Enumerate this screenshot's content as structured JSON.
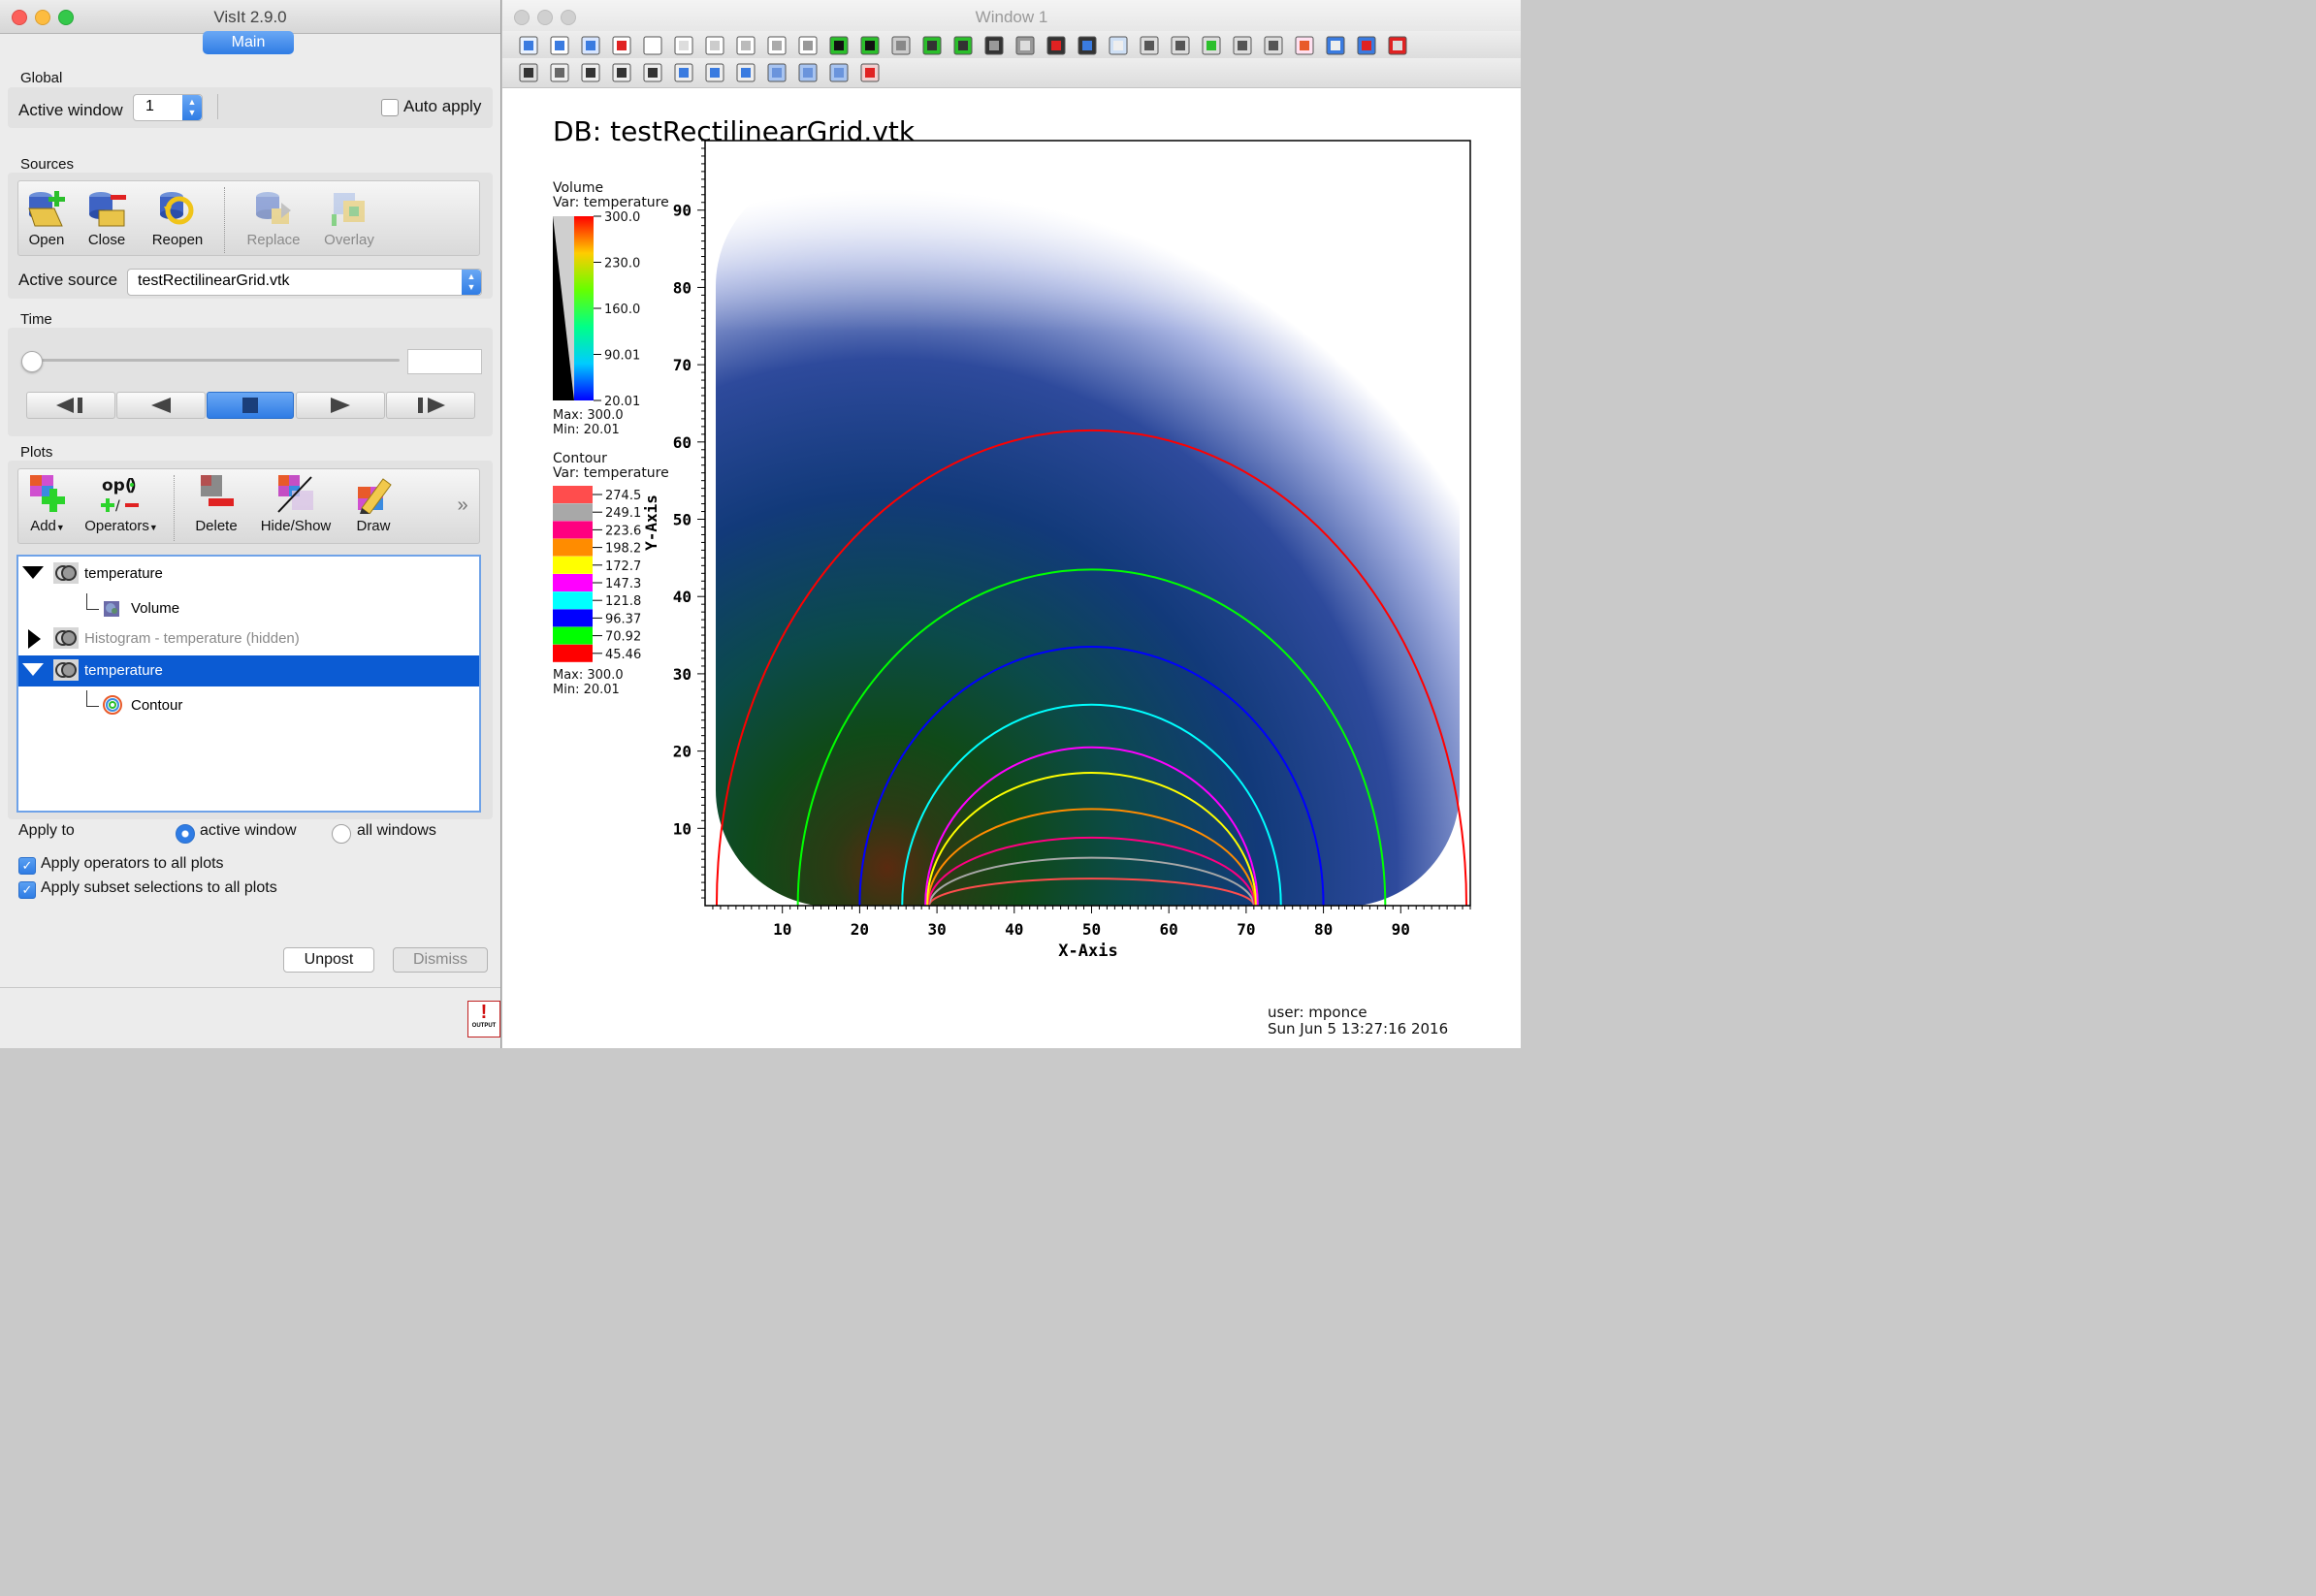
{
  "left_window": {
    "title": "VisIt 2.9.0",
    "main_tab": "Main",
    "global": {
      "header": "Global",
      "active_window_label": "Active window",
      "active_window_value": "1",
      "auto_apply_label": "Auto apply"
    },
    "sources": {
      "header": "Sources",
      "buttons": [
        "Open",
        "Close",
        "Reopen",
        "Replace",
        "Overlay"
      ],
      "active_source_label": "Active source",
      "active_source_value": "testRectilinearGrid.vtk"
    },
    "time": {
      "header": "Time"
    },
    "plots": {
      "header": "Plots",
      "buttons": [
        "Add",
        "Operators",
        "Delete",
        "Hide/Show",
        "Draw"
      ],
      "more": "»",
      "list": [
        {
          "label": "temperature",
          "kind": "plot",
          "state": "expanded"
        },
        {
          "label": "Volume",
          "kind": "child"
        },
        {
          "label": "Histogram - temperature (hidden)",
          "kind": "plot",
          "state": "collapsed"
        },
        {
          "label": "temperature",
          "kind": "plot",
          "state": "expanded-selected"
        },
        {
          "label": "Contour",
          "kind": "child"
        }
      ]
    },
    "apply_to": {
      "label": "Apply to",
      "options": [
        "active window",
        "all windows"
      ],
      "selected": "active window"
    },
    "apply_operators": "Apply operators to all plots",
    "apply_subset": "Apply subset selections to all plots",
    "unpost": "Unpost",
    "dismiss": "Dismiss",
    "output_icon_text": "OUTPUT"
  },
  "right_window": {
    "title": "Window 1",
    "db_title": "DB: testRectilinearGrid.vtk",
    "volume_legend": {
      "title": "Volume",
      "var": "Var: temperature",
      "ticks": [
        "300.0",
        "230.0",
        "160.0",
        "90.01",
        "20.01"
      ],
      "max": "Max:  300.0",
      "min": "Min:  20.01"
    },
    "contour_legend": {
      "title": "Contour",
      "var": "Var: temperature",
      "levels": [
        {
          "value": "274.5",
          "color": "#ff4d4d"
        },
        {
          "value": "249.1",
          "color": "#a8a8a8"
        },
        {
          "value": "223.6",
          "color": "#ff0080"
        },
        {
          "value": "198.2",
          "color": "#ff8c00"
        },
        {
          "value": "172.7",
          "color": "#ffff00"
        },
        {
          "value": "147.3",
          "color": "#ff00ff"
        },
        {
          "value": "121.8",
          "color": "#00ffff"
        },
        {
          "value": "96.37",
          "color": "#0000ff"
        },
        {
          "value": "70.92",
          "color": "#00ff00"
        },
        {
          "value": "45.46",
          "color": "#ff0000"
        }
      ],
      "max": "Max:  300.0",
      "min": "Min:  20.01"
    },
    "axes": {
      "xlabel": "X-Axis",
      "ylabel": "Y-Axis",
      "xticks": [
        "10",
        "20",
        "30",
        "40",
        "50",
        "60",
        "70",
        "80",
        "90"
      ],
      "yticks": [
        "10",
        "20",
        "30",
        "40",
        "50",
        "60",
        "70",
        "80",
        "90"
      ]
    },
    "user": "user: mponce",
    "date": "Sun Jun  5 13:27:16 2016"
  }
}
